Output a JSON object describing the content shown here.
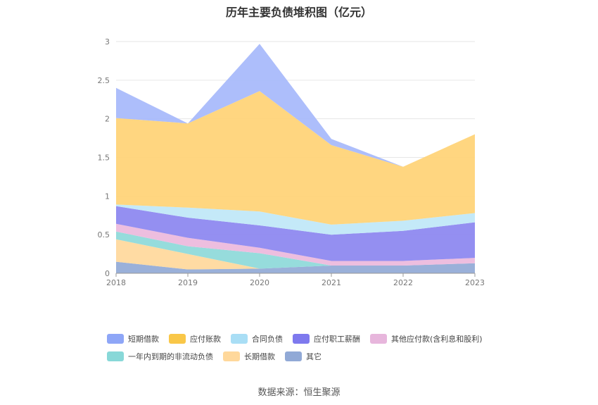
{
  "title": "历年主要负债堆积图（亿元）",
  "source": "数据来源：恒生聚源",
  "chart_data": {
    "type": "area",
    "stacked": true,
    "x": [
      "2018",
      "2019",
      "2020",
      "2021",
      "2022",
      "2023"
    ],
    "ylim": [
      0,
      3
    ],
    "yticks": [
      "0",
      "0.5",
      "1",
      "1.5",
      "2",
      "2.5",
      "3"
    ],
    "grid": true,
    "legend_position": "bottom",
    "series": [
      {
        "name": "其它",
        "color": "#91a9d6",
        "values": [
          0.15,
          0.05,
          0.06,
          0.1,
          0.1,
          0.13
        ]
      },
      {
        "name": "长期借款",
        "color": "#ffd89b",
        "values": [
          0.29,
          0.2,
          0.0,
          0.0,
          0.0,
          0.0
        ]
      },
      {
        "name": "一年内到期的非流动负债",
        "color": "#8dd9d9",
        "values": [
          0.1,
          0.1,
          0.2,
          0.0,
          0.0,
          0.0
        ]
      },
      {
        "name": "其他应付款(含利息和股利)",
        "color": "#ecb8dc",
        "values": [
          0.1,
          0.11,
          0.07,
          0.06,
          0.06,
          0.07
        ]
      },
      {
        "name": "应付职工薪酬",
        "color": "#8b86f0",
        "values": [
          0.23,
          0.26,
          0.29,
          0.34,
          0.39,
          0.46
        ]
      },
      {
        "name": "合同负债",
        "color": "#bfe7f7",
        "values": [
          0.02,
          0.13,
          0.18,
          0.13,
          0.13,
          0.12
        ]
      },
      {
        "name": "应付账款",
        "color": "#ffd275",
        "values": [
          1.12,
          1.09,
          1.56,
          1.03,
          0.7,
          1.02
        ]
      },
      {
        "name": "短期借款",
        "color": "#a6b8fb",
        "values": [
          0.39,
          0.0,
          0.61,
          0.08,
          0.0,
          0.0
        ]
      }
    ]
  },
  "legend_rows": [
    [
      {
        "label": "短期借款",
        "color": "#8ea6f7"
      },
      {
        "label": "应付账款",
        "color": "#f9c748"
      },
      {
        "label": "合同负债",
        "color": "#a9def5"
      },
      {
        "label": "应付职工薪酬",
        "color": "#7e79ee"
      },
      {
        "label": "其他应付款(含利息和股利)",
        "color": "#e7b6dc"
      }
    ],
    [
      {
        "label": "一年内到期的非流动负债",
        "color": "#88d8d8"
      },
      {
        "label": "长期借款",
        "color": "#ffd89b"
      },
      {
        "label": "其它",
        "color": "#91a9d6"
      }
    ]
  ]
}
